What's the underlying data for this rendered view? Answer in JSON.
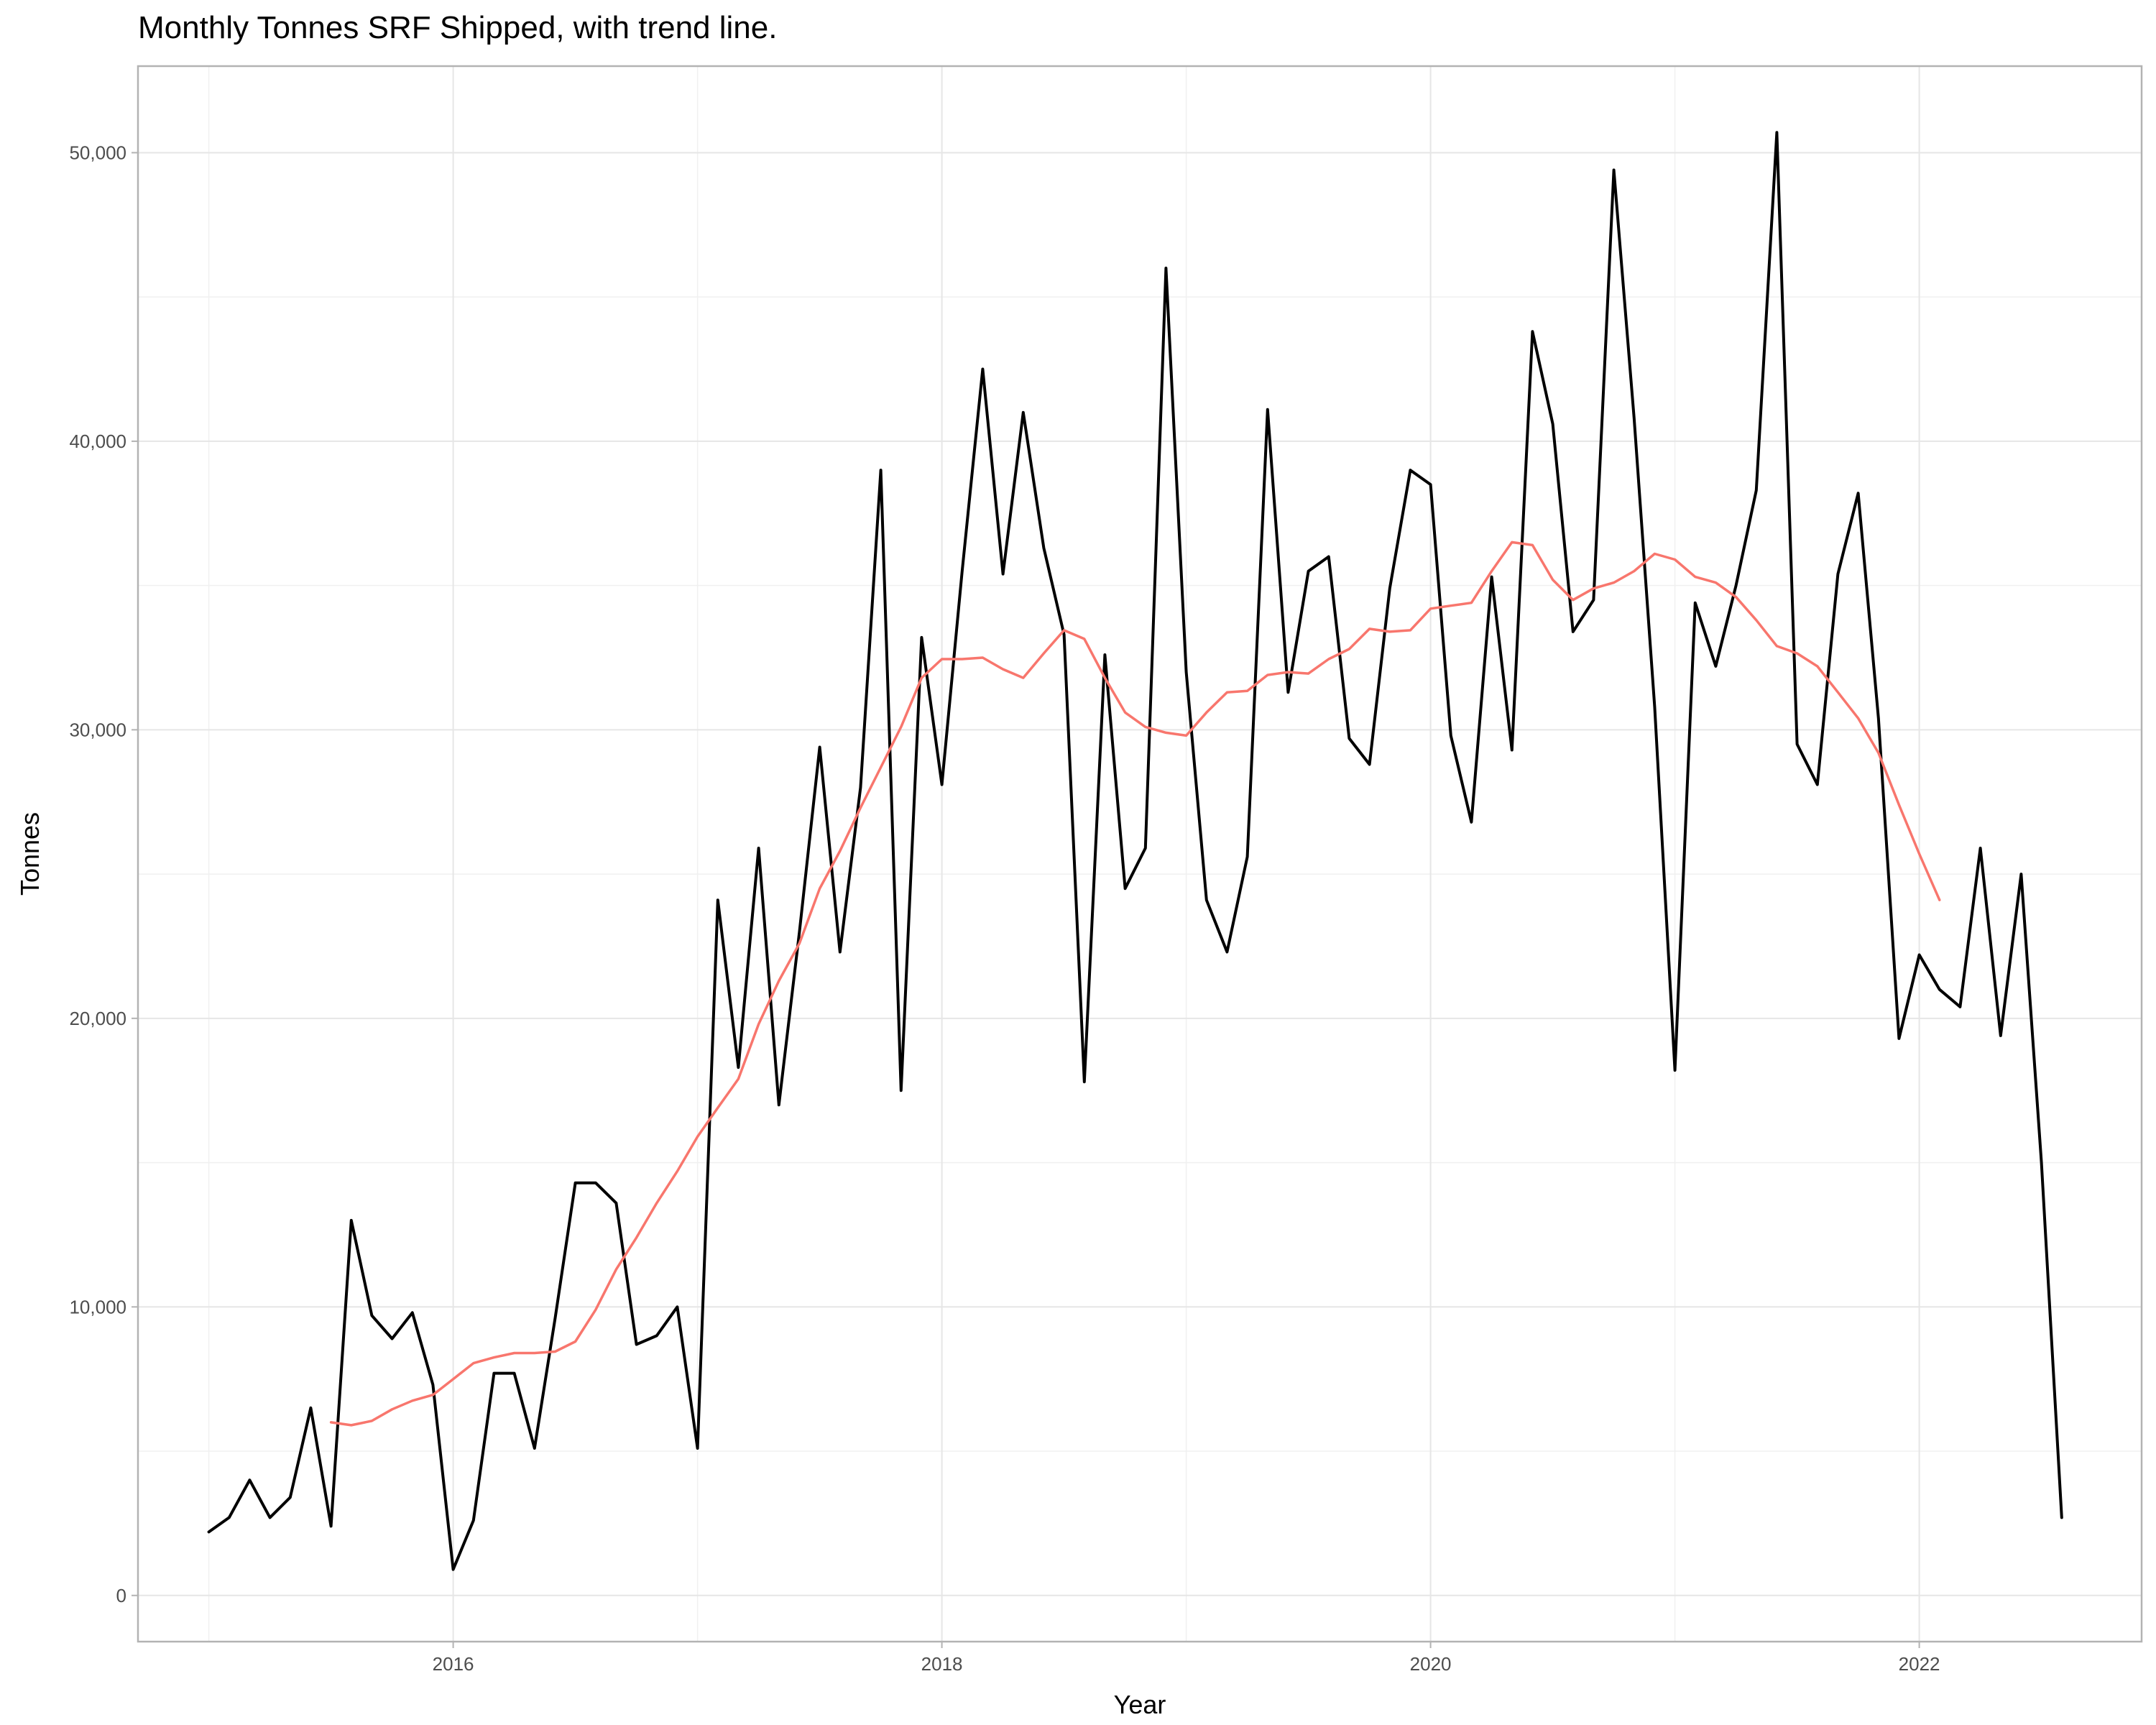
{
  "chart_data": {
    "type": "line",
    "title": "Monthly Tonnes SRF Shipped, with trend line.",
    "xlabel": "Year",
    "ylabel": "Tonnes",
    "xlim": [
      2014.71,
      2022.91
    ],
    "ylim": [
      -1600,
      53000
    ],
    "x_ticks": [
      2016,
      2018,
      2020,
      2022
    ],
    "x_tick_labels": [
      "2016",
      "2018",
      "2020",
      "2022"
    ],
    "y_ticks": [
      0,
      10000,
      20000,
      30000,
      40000,
      50000
    ],
    "y_tick_labels": [
      "0",
      "10,000",
      "20,000",
      "30,000",
      "40,000",
      "50,000"
    ],
    "grid": true,
    "legend": "none",
    "series": [
      {
        "color": "#000000",
        "x": [
          2015.0,
          2015.083,
          2015.167,
          2015.25,
          2015.333,
          2015.417,
          2015.5,
          2015.583,
          2015.667,
          2015.75,
          2015.833,
          2015.917,
          2016.0,
          2016.083,
          2016.167,
          2016.25,
          2016.333,
          2016.417,
          2016.5,
          2016.583,
          2016.667,
          2016.75,
          2016.833,
          2016.917,
          2017.0,
          2017.083,
          2017.167,
          2017.25,
          2017.333,
          2017.417,
          2017.5,
          2017.583,
          2017.667,
          2017.75,
          2017.833,
          2017.917,
          2018.0,
          2018.083,
          2018.167,
          2018.25,
          2018.333,
          2018.417,
          2018.5,
          2018.583,
          2018.667,
          2018.75,
          2018.833,
          2018.917,
          2019.0,
          2019.083,
          2019.167,
          2019.25,
          2019.333,
          2019.417,
          2019.5,
          2019.583,
          2019.667,
          2019.75,
          2019.833,
          2019.917,
          2020.0,
          2020.083,
          2020.167,
          2020.25,
          2020.333,
          2020.417,
          2020.5,
          2020.583,
          2020.667,
          2020.75,
          2020.833,
          2020.917,
          2021.0,
          2021.083,
          2021.167,
          2021.25,
          2021.333,
          2021.417,
          2021.5,
          2021.583,
          2021.667,
          2021.75,
          2021.833,
          2021.917,
          2022.0,
          2022.083,
          2022.167,
          2022.25,
          2022.333,
          2022.417,
          2022.5,
          2022.583
        ],
        "values": [
          2200,
          2700,
          4000,
          2700,
          3400,
          6500,
          2400,
          13000,
          9700,
          8900,
          9800,
          7300,
          900,
          2600,
          7700,
          7700,
          5100,
          9600,
          14300,
          14300,
          13600,
          8700,
          9000,
          10000,
          5100,
          24100,
          18300,
          25900,
          17000,
          23000,
          29400,
          22300,
          28000,
          39000,
          17500,
          33200,
          28100,
          35500,
          42500,
          35400,
          41000,
          36300,
          33300,
          17800,
          32600,
          24500,
          25900,
          46000,
          32000,
          24100,
          22300,
          25600,
          41100,
          31300,
          35500,
          36000,
          29700,
          28800,
          34900,
          39000,
          38500,
          29800,
          26800,
          35300,
          29300,
          43800,
          40600,
          33400,
          34500,
          49400,
          40800,
          30800,
          18200,
          34400,
          32200,
          35000,
          38300,
          50700,
          29500,
          28100,
          35400,
          38200,
          30400,
          19300,
          22200,
          21000,
          20400,
          25900,
          19400,
          25000,
          15000,
          2700
        ]
      },
      {
        "color": "#f8766d",
        "x": [
          2015.5,
          2015.583,
          2015.667,
          2015.75,
          2015.833,
          2015.917,
          2016.0,
          2016.083,
          2016.167,
          2016.25,
          2016.333,
          2016.417,
          2016.5,
          2016.583,
          2016.667,
          2016.75,
          2016.833,
          2016.917,
          2017.0,
          2017.083,
          2017.167,
          2017.25,
          2017.333,
          2017.417,
          2017.5,
          2017.583,
          2017.667,
          2017.75,
          2017.833,
          2017.917,
          2018.0,
          2018.083,
          2018.167,
          2018.25,
          2018.333,
          2018.417,
          2018.5,
          2018.583,
          2018.667,
          2018.75,
          2018.833,
          2018.917,
          2019.0,
          2019.083,
          2019.167,
          2019.25,
          2019.333,
          2019.417,
          2019.5,
          2019.583,
          2019.667,
          2019.75,
          2019.833,
          2019.917,
          2020.0,
          2020.083,
          2020.167,
          2020.25,
          2020.333,
          2020.417,
          2020.5,
          2020.583,
          2020.667,
          2020.75,
          2020.833,
          2020.917,
          2021.0,
          2021.083,
          2021.167,
          2021.25,
          2021.333,
          2021.417,
          2021.5,
          2021.583,
          2021.667,
          2021.75,
          2021.833,
          2021.917,
          2022.0,
          2022.083
        ],
        "values": [
          6000,
          5900,
          6050,
          6450,
          6750,
          6950,
          7500,
          8050,
          8250,
          8400,
          8400,
          8450,
          8800,
          9900,
          11300,
          12400,
          13600,
          14700,
          15900,
          16900,
          17900,
          19800,
          21300,
          22600,
          24500,
          25800,
          27300,
          28700,
          30100,
          31800,
          32450,
          32450,
          32500,
          32100,
          31800,
          32650,
          33450,
          33150,
          31800,
          30600,
          30100,
          29900,
          29800,
          30600,
          31300,
          31350,
          31900,
          32000,
          31950,
          32450,
          32800,
          33500,
          33400,
          33450,
          34200,
          34300,
          34400,
          35500,
          36500,
          36400,
          35200,
          34500,
          34900,
          35100,
          35500,
          36100,
          35900,
          35300,
          35100,
          34600,
          33800,
          32900,
          32650,
          32200,
          31300,
          30400,
          29200,
          27400,
          25700,
          24100
        ]
      }
    ]
  }
}
